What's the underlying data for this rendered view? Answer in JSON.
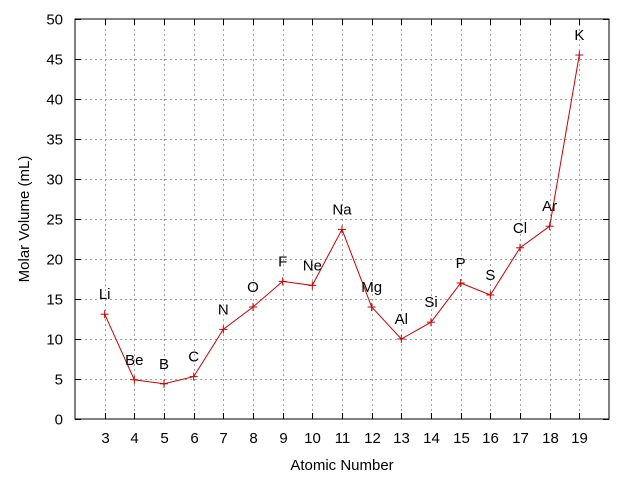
{
  "chart_data": {
    "type": "line",
    "xlabel": "Atomic Number",
    "ylabel": "Molar Volume (mL)",
    "xlim": [
      2,
      20
    ],
    "ylim": [
      0,
      50
    ],
    "x_ticks": [
      3,
      4,
      5,
      6,
      7,
      8,
      9,
      10,
      11,
      12,
      13,
      14,
      15,
      16,
      17,
      18,
      19
    ],
    "y_ticks": [
      0,
      5,
      10,
      15,
      20,
      25,
      30,
      35,
      40,
      45,
      50
    ],
    "grid": true,
    "line_color": "#cc0000",
    "series": [
      {
        "x": [
          3,
          4,
          5,
          6,
          7,
          8,
          9,
          10,
          11,
          12,
          13,
          14,
          15,
          16,
          17,
          18,
          19
        ],
        "y": [
          13.1,
          4.9,
          4.4,
          5.3,
          11.2,
          14.0,
          17.2,
          16.7,
          23.7,
          14.0,
          10.0,
          12.1,
          17.0,
          15.5,
          21.4,
          24.1,
          45.5
        ],
        "labels": [
          "Li",
          "Be",
          "B",
          "C",
          "N",
          "O",
          "F",
          "Ne",
          "Na",
          "Mg",
          "Al",
          "Si",
          "P",
          "S",
          "Cl",
          "Ar",
          "K"
        ]
      }
    ]
  }
}
